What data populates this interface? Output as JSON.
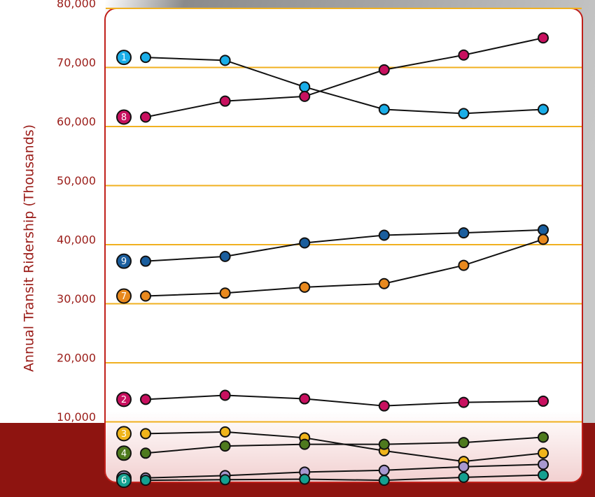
{
  "chart_data": {
    "type": "line",
    "y_label": "Annual Transit Ridership (Thousands)",
    "categories": [
      null,
      null,
      null,
      null,
      null,
      null
    ],
    "ylim": [
      0,
      80000
    ],
    "yticks": [
      {
        "value": 10000,
        "label": "10,000"
      },
      {
        "value": 20000,
        "label": "20,000"
      },
      {
        "value": 30000,
        "label": "30,000"
      },
      {
        "value": 40000,
        "label": "40,000"
      },
      {
        "value": 50000,
        "label": "50,000"
      },
      {
        "value": 60000,
        "label": "60,000"
      },
      {
        "value": 70000,
        "label": "70,000"
      },
      {
        "value": 80000,
        "label": "80,000"
      }
    ],
    "grid": true,
    "series": [
      {
        "name": "1",
        "color": "#1aaee8",
        "values": [
          71700,
          71200,
          66700,
          62900,
          62200,
          62900
        ]
      },
      {
        "name": "8",
        "color": "#c8105f",
        "values": [
          61600,
          64300,
          65100,
          69600,
          72100,
          75000
        ]
      },
      {
        "name": "9",
        "color": "#1a5e9e",
        "values": [
          37200,
          38000,
          40300,
          41600,
          42000,
          42500
        ]
      },
      {
        "name": "7",
        "color": "#e8891e",
        "values": [
          31300,
          31800,
          32800,
          33400,
          36500,
          40900
        ]
      },
      {
        "name": "2",
        "color": "#c8105f",
        "values": [
          13800,
          14500,
          13900,
          12700,
          13300,
          13500
        ]
      },
      {
        "name": "3",
        "color": "#f0b41a",
        "values": [
          8000,
          8300,
          7300,
          5100,
          3300,
          4700
        ]
      },
      {
        "name": "4",
        "color": "#4e7a1e",
        "values": [
          4700,
          5900,
          6200,
          6200,
          6500,
          7400
        ]
      },
      {
        "name": "5",
        "color": "#a898d0",
        "values": [
          500,
          900,
          1500,
          1800,
          2400,
          2800
        ]
      },
      {
        "name": "6",
        "color": "#14a090",
        "values": [
          100,
          200,
          300,
          100,
          600,
          1000
        ]
      }
    ]
  }
}
